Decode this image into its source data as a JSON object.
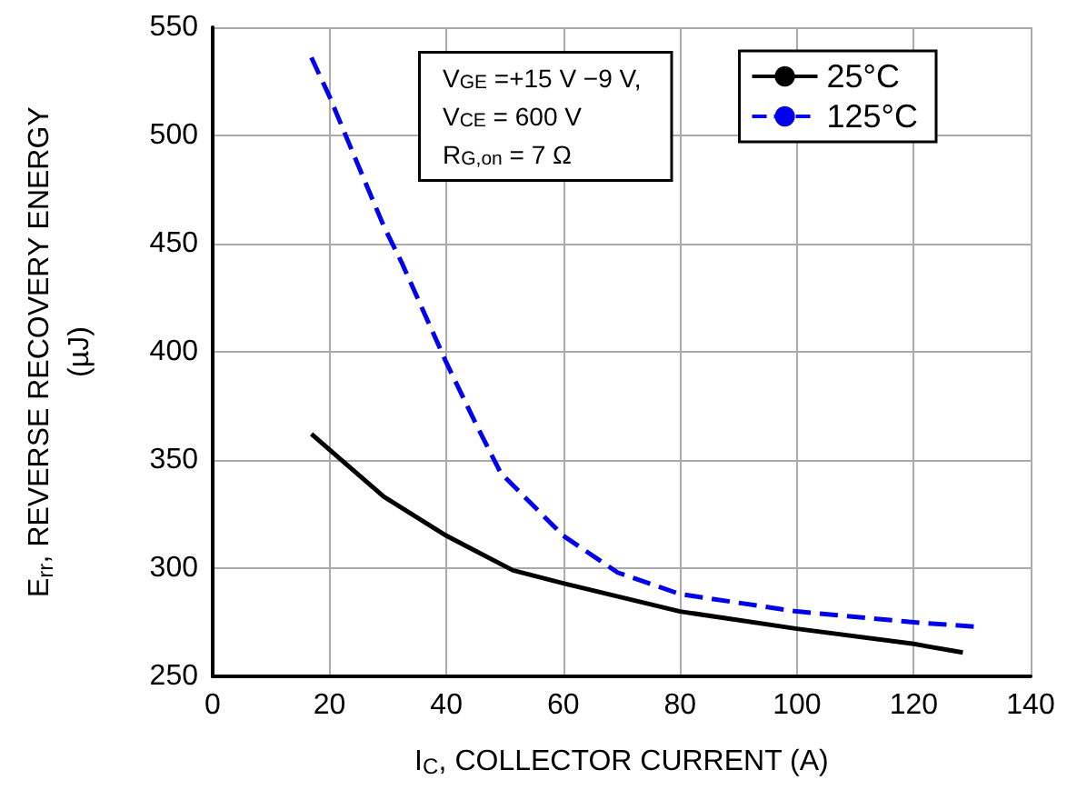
{
  "chart_data": {
    "type": "line",
    "xlabel": "I$_{C}$, COLLECTOR CURRENT (A)",
    "ylabel": "E$_{rr}$, REVERSE RECOVERY ENERGY\n(µJ)",
    "annotations": [
      "V$_{GE}$ =+15 V −9 V,\nV$_{CE}$ = 600 V\nR$_{G,on}$ = 7 Ω"
    ],
    "series": [
      {
        "name": "25°C",
        "color": "#000000",
        "line_style": "solid",
        "x": [
          16.9,
          29.3,
          40,
          51.4,
          60,
          80,
          100,
          120,
          128.4
        ],
        "values": [
          362,
          333,
          315,
          299,
          293,
          280,
          272,
          265,
          261
        ]
      },
      {
        "name": "125°C",
        "color": "#0000ee",
        "line_style": "dashed",
        "x": [
          16.9,
          20,
          24,
          29.3,
          32.4,
          40,
          45,
          49.3,
          60,
          69.3,
          80,
          100,
          120,
          130.5
        ],
        "values": [
          536,
          518,
          492,
          458,
          441,
          395,
          367,
          344,
          315,
          298,
          288,
          280,
          275,
          273
        ]
      }
    ],
    "xlim": [
      0,
      140
    ],
    "xticks": [
      0,
      20,
      40,
      60,
      80,
      100,
      120,
      140
    ],
    "ylim": [
      250,
      550
    ],
    "yticks": [
      250,
      300,
      350,
      400,
      450,
      500,
      550
    ],
    "grid": true,
    "legend": "top right",
    "marker": "none"
  }
}
